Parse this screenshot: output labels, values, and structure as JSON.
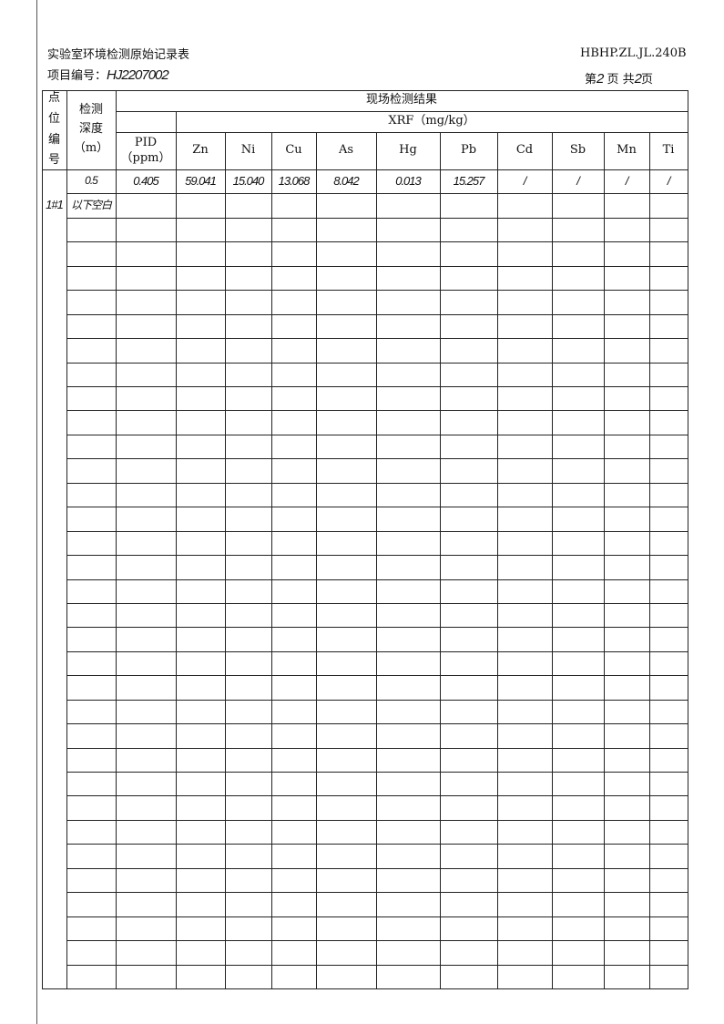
{
  "header": {
    "form_title": "实验室环境检测原始记录表",
    "form_code": "HBHP.ZL.JL.240B",
    "project_label": "项目编号：",
    "project_number": "HJ2207002",
    "page_prefix": "第",
    "page_current": "2",
    "page_mid": "页 共",
    "page_total": "2",
    "page_suffix": "页"
  },
  "table": {
    "col_point": "点位编号",
    "col_depth": "检测深度（m）",
    "group_result": "现场检测结果",
    "group_xrf": "XRF（mg/kg）",
    "col_pid": "PID（ppm）",
    "elements": [
      "Zn",
      "Ni",
      "Cu",
      "As",
      "Hg",
      "Pb",
      "Cd",
      "Sb",
      "Mn",
      "Ti"
    ],
    "point_id": "1#1",
    "rows": [
      {
        "depth": "0.5",
        "values": [
          "0.405",
          "59.041",
          "15.040",
          "13.068",
          "8.042",
          "0.013",
          "15.257",
          "/",
          "/",
          "/",
          "/"
        ]
      },
      {
        "depth": "以下空白",
        "values": [
          "",
          "",
          "",
          "",
          "",
          "",
          "",
          "",
          "",
          "",
          ""
        ]
      }
    ]
  }
}
